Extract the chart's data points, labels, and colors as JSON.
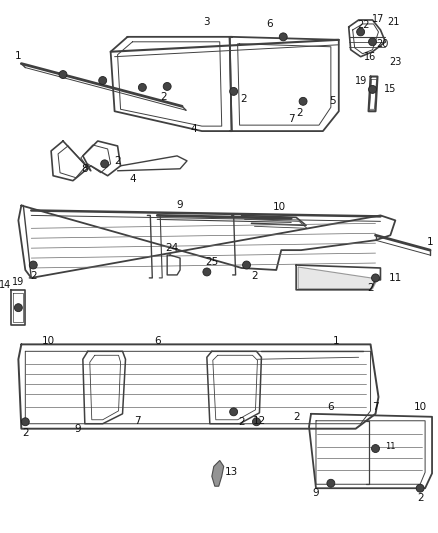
{
  "background_color": "#ffffff",
  "line_color": "#404040",
  "label_color": "#222222",
  "fig_width": 4.38,
  "fig_height": 5.33,
  "dpi": 100
}
